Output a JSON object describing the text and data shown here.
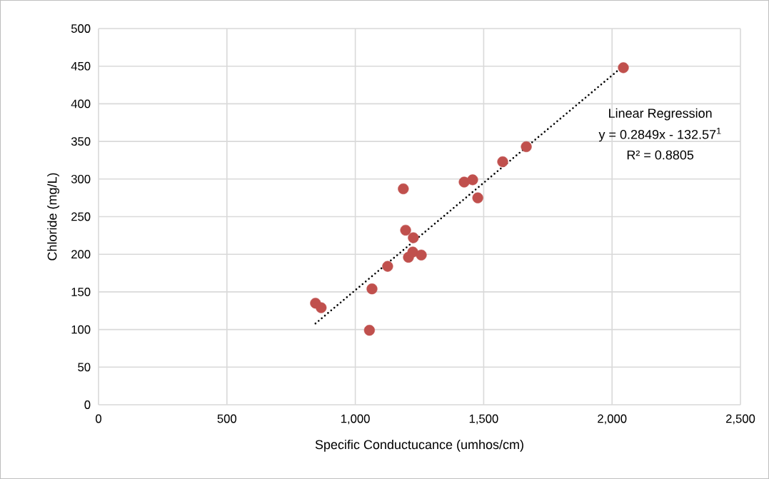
{
  "chart_data": {
    "type": "scatter",
    "xlabel": "Specific Conductucance (umhos/cm)",
    "ylabel": "Chloride (mg/L)",
    "xlim": [
      0,
      2500
    ],
    "ylim": [
      0,
      500
    ],
    "xticks": [
      0,
      500,
      {
        "value": 1000,
        "label": "1,000"
      },
      {
        "value": 1500,
        "label": "1,500"
      },
      {
        "value": 2000,
        "label": "2,000"
      },
      {
        "value": 2500,
        "label": "2,500"
      }
    ],
    "yticks": [
      0,
      50,
      100,
      150,
      200,
      250,
      300,
      350,
      400,
      450,
      500
    ],
    "grid": true,
    "series": [
      {
        "color": "#c0504d",
        "marker": "circle",
        "x": [
          845,
          867,
          1055,
          1065,
          1126,
          1187,
          1196,
          1226,
          1207,
          1224,
          1257,
          1424,
          1457,
          1477,
          1574,
          1666,
          2044
        ],
        "values": [
          135,
          129,
          99,
          154,
          184,
          287,
          232,
          222,
          196,
          203,
          199,
          296,
          299,
          275,
          323,
          343,
          448
        ]
      },
      {
        "type": "line",
        "color": "#000000",
        "line_style": "dotted",
        "marker": "none",
        "x": [
          845,
          2050
        ],
        "values": [
          108,
          452
        ]
      }
    ],
    "annotations": [
      "Linear Regression",
      "y = 0.2849x - 132.57$^{1}$",
      "R² = 0.8805"
    ]
  }
}
